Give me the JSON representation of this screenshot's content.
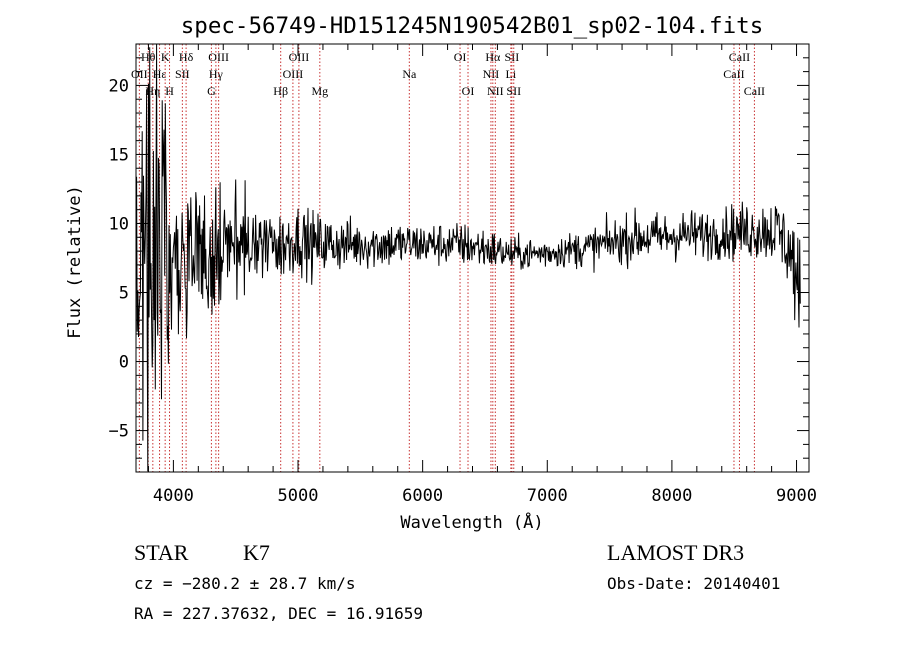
{
  "chart_data": {
    "type": "line",
    "title": "spec-56749-HD151245N190542B01_sp02-104.fits",
    "xlabel": "Wavelength (Å)",
    "ylabel": "Flux (relative)",
    "xlim": [
      3700,
      9100
    ],
    "ylim": [
      -8,
      23
    ],
    "xticks": [
      4000,
      5000,
      6000,
      7000,
      8000,
      9000
    ],
    "xtick_labels": [
      "4000",
      "5000",
      "6000",
      "7000",
      "8000",
      "9000"
    ],
    "yticks": [
      -5,
      0,
      5,
      10,
      15,
      20
    ],
    "ytick_labels": [
      "−5",
      "0",
      "5",
      "10",
      "15",
      "20"
    ],
    "grid": false,
    "spectrum_anchors": {
      "x": [
        3700,
        3750,
        3800,
        3850,
        3900,
        3950,
        4000,
        4050,
        4100,
        4150,
        4200,
        4250,
        4300,
        4350,
        4400,
        4450,
        4500,
        4600,
        4700,
        4800,
        4900,
        5000,
        5100,
        5200,
        5300,
        5500,
        5700,
        5900,
        6100,
        6300,
        6500,
        6700,
        6900,
        7100,
        7300,
        7500,
        7700,
        7900,
        8100,
        8300,
        8500,
        8700,
        8850,
        8950,
        9000,
        9030
      ],
      "y": [
        8,
        9,
        10,
        10,
        9,
        9,
        8,
        8,
        8.5,
        8,
        8,
        7,
        7,
        7.5,
        8,
        8,
        8.5,
        8.5,
        8.5,
        8.5,
        8.5,
        9,
        8.5,
        8.5,
        8.5,
        8.5,
        8.5,
        8.5,
        8.5,
        8.5,
        8.2,
        7.8,
        7.8,
        8,
        8.2,
        8.6,
        9,
        9,
        9.2,
        9.2,
        9.4,
        9.5,
        9.5,
        8,
        6,
        3
      ],
      "noise": [
        5,
        6,
        7,
        7,
        6,
        5,
        4,
        3.5,
        3,
        3,
        2.8,
        2.6,
        2.5,
        2.3,
        2.1,
        1.9,
        1.7,
        1.5,
        1.4,
        1.3,
        1.3,
        1.2,
        1.2,
        1.1,
        1,
        0.9,
        0.9,
        0.8,
        0.8,
        0.8,
        0.8,
        0.6,
        0.6,
        0.6,
        0.7,
        0.8,
        0.9,
        0.9,
        0.9,
        0.9,
        1,
        1.1,
        1.2,
        1.5,
        2,
        3
      ]
    },
    "spectral_lines": [
      {
        "label": "OII",
        "wavelength": 3727,
        "row": 1
      },
      {
        "label": "Hθ",
        "wavelength": 3798,
        "row": 0
      },
      {
        "label": "Hη",
        "wavelength": 3835,
        "row": 2
      },
      {
        "label": "Hε",
        "wavelength": 3889,
        "row": 1
      },
      {
        "label": "K",
        "wavelength": 3934,
        "row": 0
      },
      {
        "label": "H",
        "wavelength": 3969,
        "row": 2
      },
      {
        "label": "SII",
        "wavelength": 4072,
        "row": 1
      },
      {
        "label": "Hδ",
        "wavelength": 4102,
        "row": 0
      },
      {
        "label": "G",
        "wavelength": 4305,
        "row": 2
      },
      {
        "label": "Hγ",
        "wavelength": 4341,
        "row": 1
      },
      {
        "label": "OIII",
        "wavelength": 4363,
        "row": 0
      },
      {
        "label": "Hβ",
        "wavelength": 4861,
        "row": 2
      },
      {
        "label": "OIII",
        "wavelength": 4959,
        "row": 1
      },
      {
        "label": "OIII",
        "wavelength": 5007,
        "row": 0
      },
      {
        "label": "Mg",
        "wavelength": 5175,
        "row": 2
      },
      {
        "label": "Na",
        "wavelength": 5893,
        "row": 1
      },
      {
        "label": "OI",
        "wavelength": 6300,
        "row": 0
      },
      {
        "label": "OI",
        "wavelength": 6364,
        "row": 2
      },
      {
        "label": "NII",
        "wavelength": 6548,
        "row": 1
      },
      {
        "label": "Hα",
        "wavelength": 6563,
        "row": 0
      },
      {
        "label": "NII",
        "wavelength": 6583,
        "row": 2
      },
      {
        "label": "Li",
        "wavelength": 6708,
        "row": 1
      },
      {
        "label": "SII",
        "wavelength": 6716,
        "row": 0
      },
      {
        "label": "SII",
        "wavelength": 6731,
        "row": 2
      },
      {
        "label": "CaII",
        "wavelength": 8498,
        "row": 1
      },
      {
        "label": "CaII",
        "wavelength": 8542,
        "row": 0
      },
      {
        "label": "CaII",
        "wavelength": 8662,
        "row": 2
      }
    ]
  },
  "info": {
    "object_class": "STAR",
    "subclass": "K7",
    "survey": "LAMOST DR3",
    "redshift": "cz = −280.2 ± 28.7 km/s",
    "obs_date": "Obs-Date: 20140401",
    "coordinates": "RA = 227.37632, DEC =  16.91659"
  },
  "colors": {
    "spectrum": "#000000",
    "line_markers": "#c83232",
    "axis": "#000000"
  }
}
